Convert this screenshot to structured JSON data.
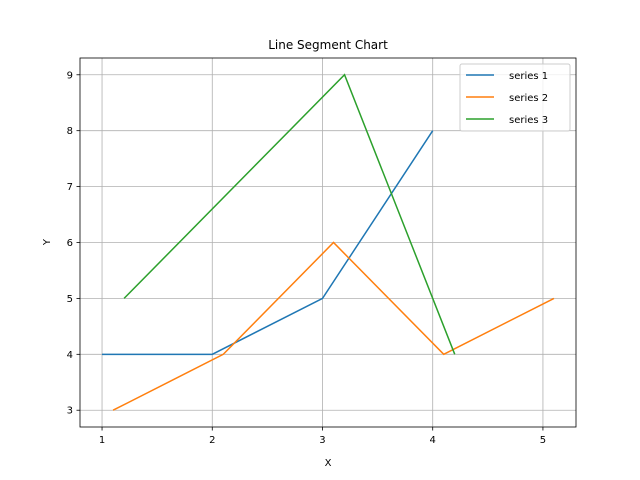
{
  "chart_data": {
    "type": "line",
    "title": "Line Segment Chart",
    "xlabel": "X",
    "ylabel": "Y",
    "xlim": [
      0.8,
      5.3
    ],
    "ylim": [
      2.7,
      9.3
    ],
    "xticks": [
      1,
      2,
      3,
      4,
      5
    ],
    "yticks": [
      3,
      4,
      5,
      6,
      7,
      8,
      9
    ],
    "grid": true,
    "legend_position": "top-right",
    "series": [
      {
        "name": "series 1",
        "color": "#1f77b4",
        "x": [
          1,
          2,
          3,
          4
        ],
        "y": [
          4,
          4,
          5,
          8
        ]
      },
      {
        "name": "series 2",
        "color": "#ff7f0e",
        "x": [
          1.1,
          2.1,
          3.1,
          4.1,
          5.1
        ],
        "y": [
          3,
          4,
          6,
          4,
          5
        ]
      },
      {
        "name": "series 3",
        "color": "#2ca02c",
        "x": [
          1.2,
          3.2,
          4.2
        ],
        "y": [
          5,
          9,
          4
        ]
      }
    ]
  }
}
